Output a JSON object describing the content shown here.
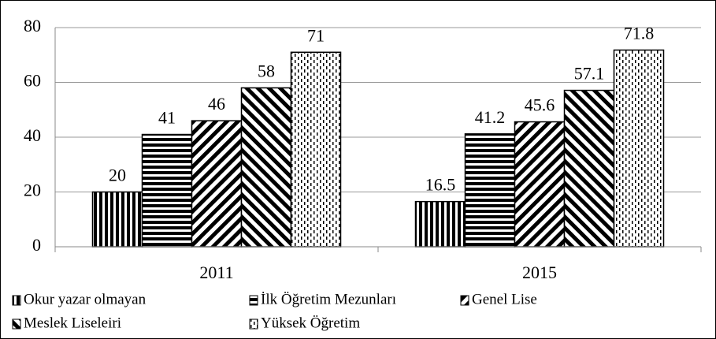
{
  "chart_data": {
    "type": "bar",
    "categories": [
      "2011",
      "2015"
    ],
    "series": [
      {
        "name": "Okur yazar olmayan",
        "color": "#000000",
        "pattern": "vertical",
        "values": [
          20,
          16.5
        ]
      },
      {
        "name": "İlk Öğretim Mezunları",
        "color": "#000000",
        "pattern": "horizontal",
        "values": [
          41,
          41.2
        ]
      },
      {
        "name": "Genel Lise",
        "color": "#000000",
        "pattern": "diagonal-up",
        "values": [
          46,
          45.6
        ]
      },
      {
        "name": "Meslek Liseleiri",
        "color": "#000000",
        "pattern": "diagonal-down",
        "values": [
          58,
          57.1
        ]
      },
      {
        "name": "Yüksek Öğretim",
        "color": "#000000",
        "pattern": "dotted",
        "values": [
          71,
          71.8
        ]
      }
    ],
    "ylim": [
      0,
      80
    ],
    "yticks": [
      0,
      20,
      40,
      60,
      80
    ],
    "grid": true,
    "legend": "bottom"
  }
}
